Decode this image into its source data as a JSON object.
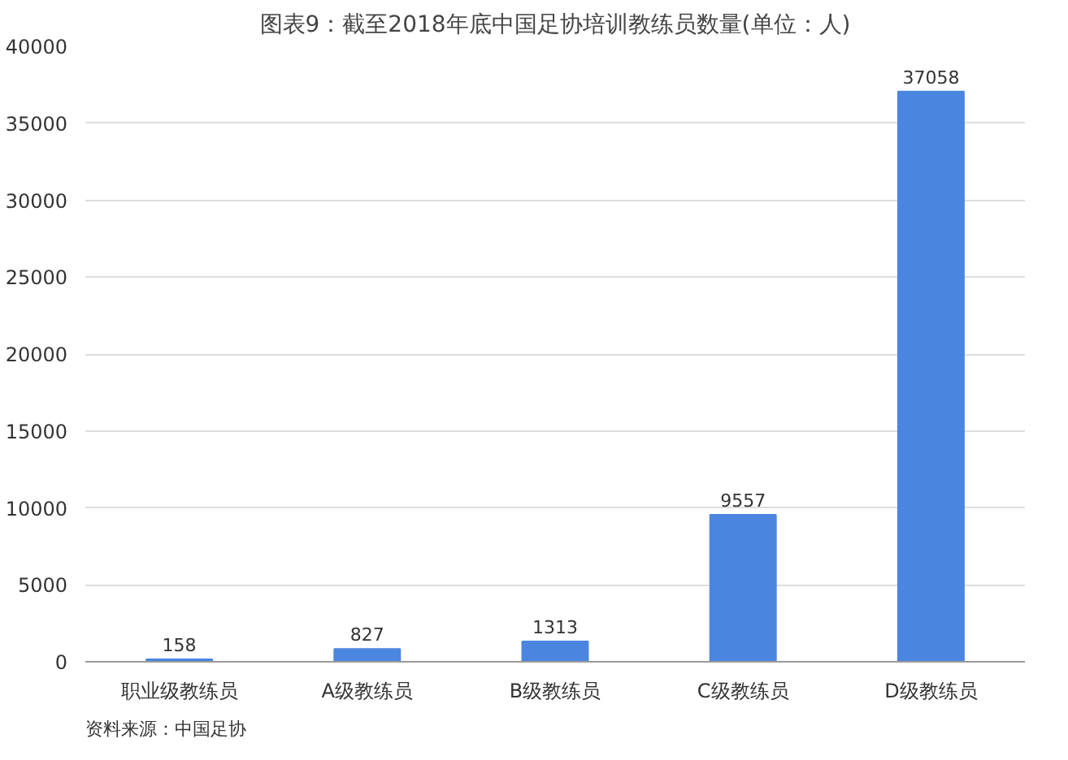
{
  "chart_data": {
    "type": "bar",
    "title": "图表9：截至2018年底中国足协培训教练员数量(单位：人)",
    "categories": [
      "职业级教练员",
      "A级教练员",
      "B级教练员",
      "C级教练员",
      "D级教练员"
    ],
    "values": [
      158,
      827,
      1313,
      9557,
      37058
    ],
    "color": "#4a86e0",
    "ylim": [
      0,
      40000
    ],
    "yticks": [
      0,
      5000,
      10000,
      15000,
      20000,
      25000,
      30000,
      35000,
      40000
    ],
    "grid": "y",
    "data_labels": true,
    "annotations": [
      "资料来源：中国足协"
    ]
  }
}
